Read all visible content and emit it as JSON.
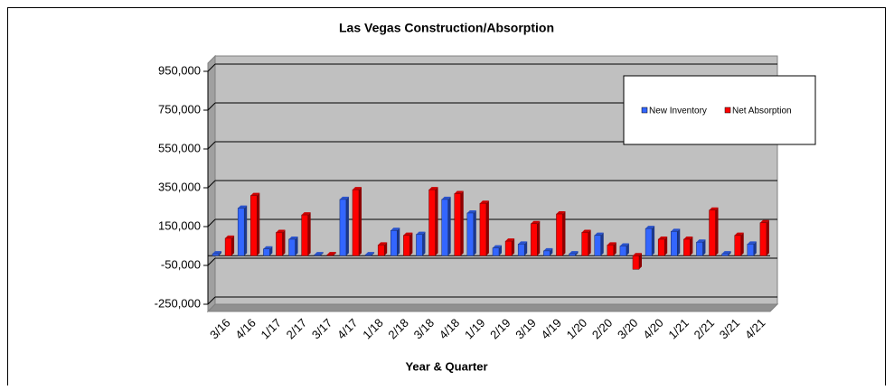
{
  "chart_data": {
    "type": "bar",
    "title": "Las Vegas Construction/Absorption",
    "x_label": "Year & Quarter",
    "categories": [
      "3/16",
      "4/16",
      "1/17",
      "2/17",
      "3/17",
      "4/17",
      "1/18",
      "2/18",
      "3/18",
      "4/18",
      "1/19",
      "2/19",
      "3/19",
      "4/19",
      "1/20",
      "2/20",
      "3/20",
      "4/20",
      "1/21",
      "2/21",
      "3/21",
      "4/21"
    ],
    "series": [
      {
        "name": "New Inventory",
        "color": "#3366ff",
        "values": [
          10000,
          245000,
          35000,
          85000,
          5000,
          290000,
          5000,
          130000,
          110000,
          290000,
          220000,
          40000,
          60000,
          25000,
          10000,
          105000,
          50000,
          140000,
          125000,
          70000,
          10000,
          60000
        ]
      },
      {
        "name": "Net Absorption",
        "color": "#ff0000",
        "values": [
          90000,
          310000,
          120000,
          210000,
          5000,
          340000,
          55000,
          105000,
          340000,
          320000,
          270000,
          75000,
          165000,
          215000,
          120000,
          55000,
          -70000,
          85000,
          85000,
          235000,
          105000,
          170000
        ]
      }
    ],
    "ylim": [
      -250000,
      950000
    ],
    "yticks": [
      {
        "value": -250000,
        "label": "-250,000"
      },
      {
        "value": -50000,
        "label": "-50,000"
      },
      {
        "value": 150000,
        "label": "150,000"
      },
      {
        "value": 350000,
        "label": "350,000"
      },
      {
        "value": 550000,
        "label": "550,000"
      },
      {
        "value": 750000,
        "label": "750,000"
      },
      {
        "value": 950000,
        "label": "950,000"
      }
    ],
    "grid": true,
    "legend": "upper right"
  }
}
